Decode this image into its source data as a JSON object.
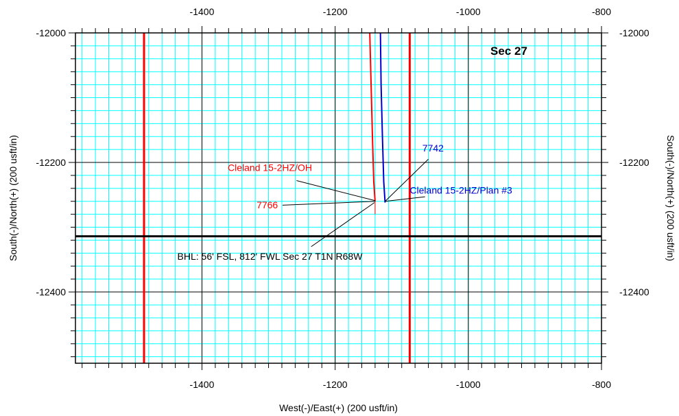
{
  "chart_data": {
    "type": "line",
    "xlabel": "West(-)/East(+) (200 usft/in)",
    "ylabel": "South(-)/North(+) (200 usft/in)",
    "xlim": [
      -1590,
      -800
    ],
    "ylim": [
      -12510,
      -12000
    ],
    "xticks": [
      -1400,
      -1200,
      -1000,
      -800
    ],
    "yticks": [
      -12000,
      -12200,
      -12400
    ],
    "x_tick_labels": [
      "-1400",
      "-1200",
      "-1000",
      "-800"
    ],
    "y_tick_labels": [
      "-12000",
      "-12200",
      "-12400"
    ],
    "minor_grid_step": 20,
    "major_grid_step": 200,
    "colors": {
      "grid_minor": "#00ffff",
      "grid_major": "#000000",
      "red": "#ff0000",
      "blue": "#0000cc",
      "black": "#000000"
    },
    "section_label": "Sec 27",
    "section_lines": [
      {
        "orientation": "vertical",
        "x": -1487,
        "color": "red"
      },
      {
        "orientation": "vertical",
        "x": -1088,
        "color": "red"
      },
      {
        "orientation": "horizontal",
        "y": -12314,
        "color": "black"
      }
    ],
    "series": [
      {
        "name": "Cleland 15-2HZ/OH",
        "color": "red",
        "x": [
          -1148,
          -1146,
          -1144,
          -1142,
          -1140
        ],
        "y": [
          -12000,
          -12080,
          -12160,
          -12230,
          -12260
        ]
      },
      {
        "name": "Cleland 15-2HZ/Plan #3",
        "color": "blue",
        "x": [
          -1132,
          -1131,
          -1129,
          -1127,
          -1125
        ],
        "y": [
          -12000,
          -12080,
          -12160,
          -12230,
          -12262
        ]
      }
    ],
    "tail": {
      "x": [
        -1140,
        -1140
      ],
      "y": [
        -12260,
        -12280
      ]
    },
    "annotations": [
      {
        "text": "Cleland 15-2HZ/OH",
        "color": "red",
        "x": -1298,
        "y": -12213,
        "anchor": "middle",
        "leader_from": [
          -1258,
          -12228
        ],
        "leader_to": [
          -1140,
          -12259
        ]
      },
      {
        "text": "7766",
        "color": "red",
        "x": -1318,
        "y": -12271,
        "anchor": "start",
        "leader_from": [
          -1279,
          -12266
        ],
        "leader_to": [
          -1140,
          -12260
        ]
      },
      {
        "text": "7742",
        "color": "blue",
        "x": -1053,
        "y": -12183,
        "anchor": "middle",
        "leader_from": [
          -1060,
          -12195
        ],
        "leader_to": [
          -1125,
          -12260
        ]
      },
      {
        "text": "Cleland 15-2HZ/Plan #3",
        "color": "blue",
        "x": -1011,
        "y": -12248,
        "anchor": "middle",
        "leader_from": [
          -1065,
          -12253
        ],
        "leader_to": [
          -1125,
          -12260
        ]
      },
      {
        "text": "BHL: 56' FSL, 812' FWL Sec 27 T1N R68W",
        "color": "black",
        "x": -1298,
        "y": -12350,
        "anchor": "middle",
        "leader_from": [
          -1236,
          -12330
        ],
        "leader_to": [
          -1141,
          -12262
        ]
      }
    ]
  }
}
